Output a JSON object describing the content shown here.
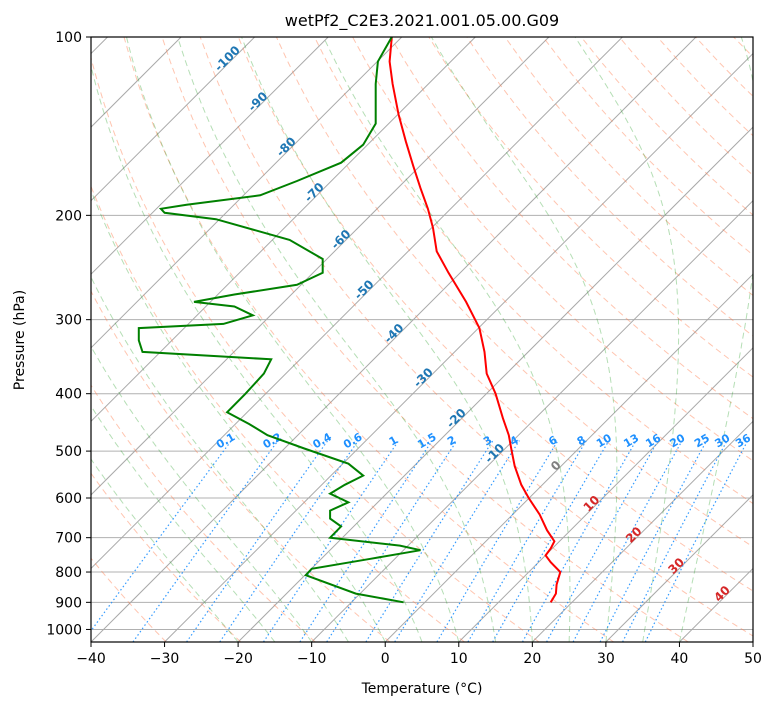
{
  "chart_data": {
    "type": "line",
    "title": "wetPf2_C2E3.2021.001.05.00.G09",
    "xlabel": "Temperature (°C)",
    "ylabel": "Pressure (hPa)",
    "xlim": [
      -40,
      50
    ],
    "ylim_hPa": [
      1050,
      100
    ],
    "y_scale": "log",
    "x_ticks": [
      "−40",
      "−30",
      "−20",
      "−10",
      "0",
      "10",
      "20",
      "30",
      "40",
      "50"
    ],
    "x_tick_values": [
      -40,
      -30,
      -20,
      -10,
      0,
      10,
      20,
      30,
      40,
      50
    ],
    "y_ticks": [
      "100",
      "200",
      "300",
      "400",
      "500",
      "600",
      "700",
      "800",
      "900",
      "1000"
    ],
    "y_tick_values": [
      100,
      200,
      300,
      400,
      500,
      600,
      700,
      800,
      900,
      1000
    ],
    "grid": true,
    "colors": {
      "temperature": "#ff0000",
      "dewpoint": "#008000",
      "dry_adiabat": "#ff7f50",
      "moist_adiabat": "#2ca02c",
      "isotherm": "#808080",
      "mixing_ratio": "#1e90ff",
      "isotherm_label": "#1f77b4",
      "skew_label": "#d62728"
    },
    "series": [
      {
        "points": [
          [
            22.5,
            900
          ],
          [
            23.2,
            870
          ],
          [
            23.3,
            840
          ],
          [
            23.8,
            800
          ],
          [
            22.5,
            770
          ],
          [
            21.8,
            750
          ],
          [
            22.5,
            730
          ],
          [
            23.0,
            710
          ],
          [
            22.0,
            680
          ],
          [
            21.0,
            640
          ],
          [
            19.5,
            600
          ],
          [
            18.5,
            570
          ],
          [
            17.6,
            530
          ],
          [
            17.2,
            500
          ],
          [
            16.8,
            470
          ],
          [
            16.0,
            440
          ],
          [
            15.0,
            400
          ],
          [
            13.8,
            370
          ],
          [
            13.5,
            340
          ],
          [
            12.8,
            310
          ],
          [
            11.0,
            280
          ],
          [
            8.6,
            250
          ],
          [
            7.0,
            230
          ],
          [
            6.5,
            210
          ],
          [
            5.8,
            195
          ],
          [
            4.8,
            180
          ],
          [
            3.8,
            165
          ],
          [
            2.8,
            150
          ],
          [
            1.8,
            135
          ],
          [
            1.0,
            120
          ],
          [
            0.6,
            110
          ],
          [
            0.9,
            100
          ]
        ]
      },
      {
        "points": [
          [
            2.5,
            900
          ],
          [
            -4,
            870
          ],
          [
            -10.8,
            810
          ],
          [
            -10,
            790
          ],
          [
            -2,
            760
          ],
          [
            4.8,
            735
          ],
          [
            2,
            722
          ],
          [
            -7.5,
            700
          ],
          [
            -6,
            670
          ],
          [
            -7.5,
            650
          ],
          [
            -7.5,
            630
          ],
          [
            -5,
            610
          ],
          [
            -7.5,
            590
          ],
          [
            -5.5,
            570
          ],
          [
            -3,
            550
          ],
          [
            -5,
            525
          ],
          [
            -11,
            495
          ],
          [
            -16,
            470
          ],
          [
            -18.5,
            450
          ],
          [
            -21.5,
            430
          ],
          [
            -19,
            400
          ],
          [
            -16.5,
            370
          ],
          [
            -15.5,
            350
          ],
          [
            -33,
            340
          ],
          [
            -33.5,
            325
          ],
          [
            -33.5,
            310
          ],
          [
            -22,
            305
          ],
          [
            -18,
            295
          ],
          [
            -20.5,
            285
          ],
          [
            -26,
            280
          ],
          [
            -20.5,
            272
          ],
          [
            -12,
            262
          ],
          [
            -8.5,
            250
          ],
          [
            -8.5,
            237
          ],
          [
            -13,
            220
          ],
          [
            -23,
            203
          ],
          [
            -30,
            198
          ],
          [
            -30.5,
            195
          ],
          [
            -27,
            192
          ],
          [
            -17,
            185
          ],
          [
            -12,
            175
          ],
          [
            -6,
            163
          ],
          [
            -3,
            152
          ],
          [
            -1.3,
            140
          ],
          [
            -1.3,
            130
          ],
          [
            -1.3,
            120
          ],
          [
            -1.0,
            110
          ],
          [
            0.9,
            100
          ]
        ]
      }
    ],
    "isotherm_labels": [
      "-100",
      "-90",
      "-80",
      "-70",
      "-60",
      "-50",
      "-40",
      "-30",
      "-20",
      "-10",
      "0",
      "10",
      "20",
      "30",
      "40"
    ],
    "mixing_ratio_labels": [
      "0.1",
      "0.2",
      "0.4",
      "0.6",
      "1",
      "1.5",
      "2",
      "3",
      "4",
      "6",
      "8",
      "10",
      "13",
      "16",
      "20",
      "25",
      "30",
      "36"
    ]
  }
}
